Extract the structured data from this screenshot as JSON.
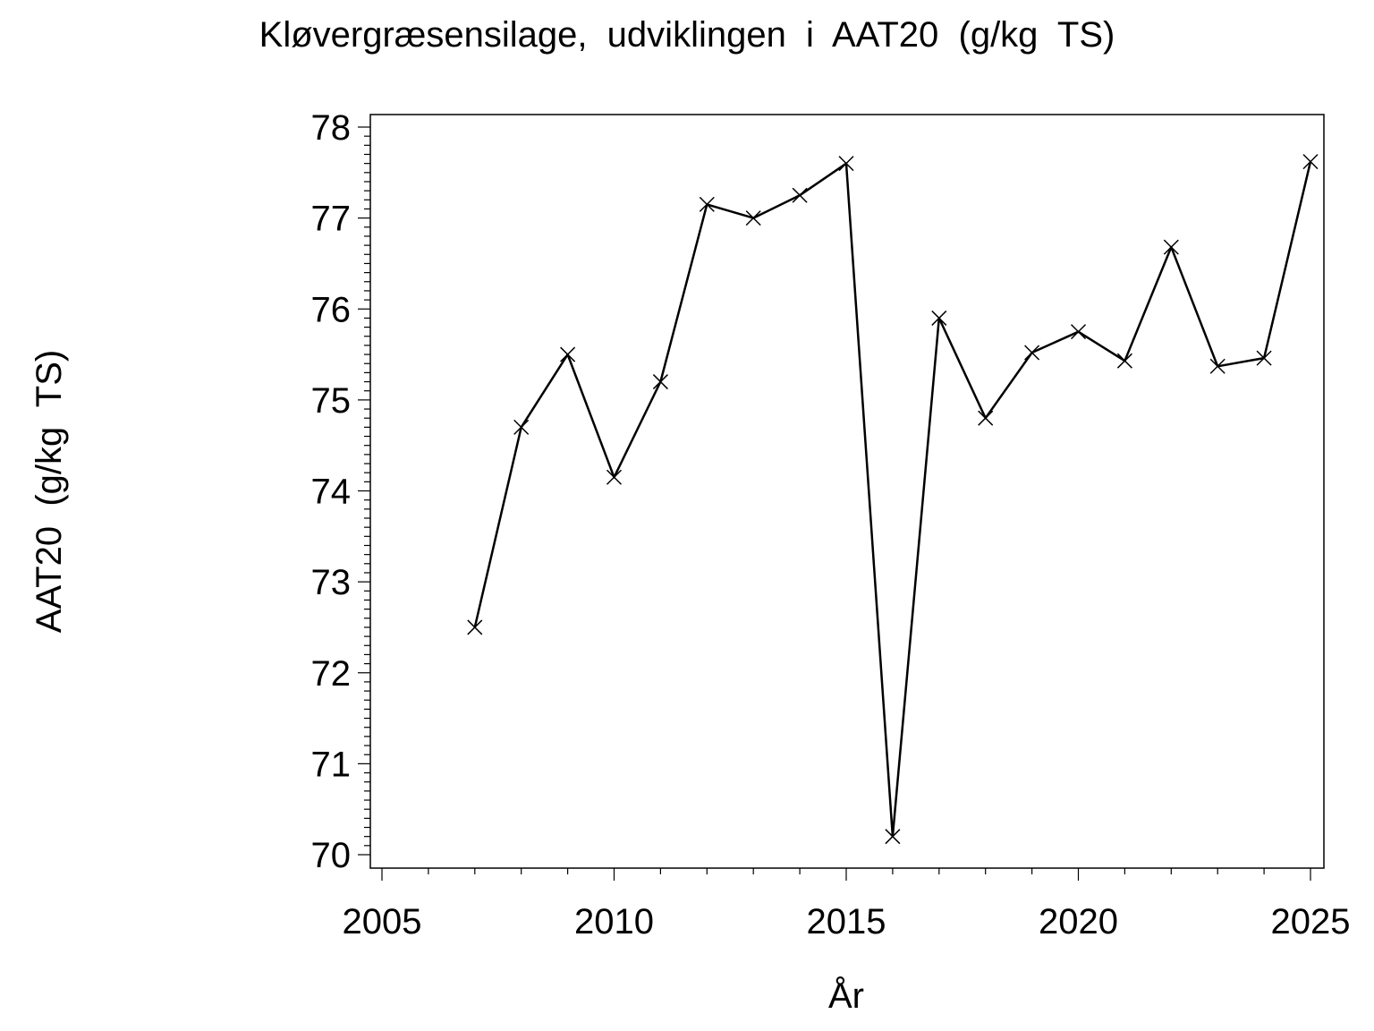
{
  "chart_data": {
    "type": "line",
    "title": "Kløvergræsensilage,  udviklingen  i  AAT20  (g/kg  TS)",
    "xlabel": "År",
    "ylabel": "AAT20  (g/kg  TS)",
    "xlim": [
      2005,
      2025
    ],
    "ylim": [
      70,
      78
    ],
    "x_ticks": [
      2005,
      2010,
      2015,
      2020,
      2025
    ],
    "y_ticks": [
      70,
      71,
      72,
      73,
      74,
      75,
      76,
      77,
      78
    ],
    "marker": "x",
    "grid": false,
    "series": [
      {
        "x": [
          2007,
          2008,
          2009,
          2010,
          2011,
          2012,
          2013,
          2014,
          2015,
          2016,
          2017,
          2018,
          2019,
          2020,
          2021,
          2022,
          2023,
          2024,
          2025
        ],
        "y": [
          72.5,
          74.7,
          75.5,
          74.15,
          75.2,
          77.15,
          77.0,
          77.25,
          77.6,
          70.2,
          75.9,
          74.8,
          75.52,
          75.75,
          75.43,
          76.68,
          75.37,
          75.46,
          77.62
        ]
      }
    ]
  }
}
